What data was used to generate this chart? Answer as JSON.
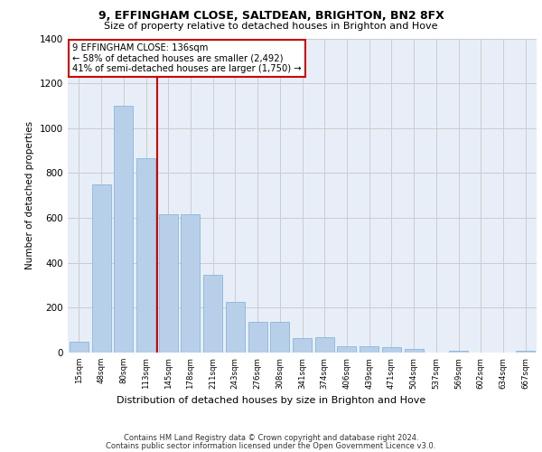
{
  "title1": "9, EFFINGHAM CLOSE, SALTDEAN, BRIGHTON, BN2 8FX",
  "title2": "Size of property relative to detached houses in Brighton and Hove",
  "xlabel": "Distribution of detached houses by size in Brighton and Hove",
  "ylabel": "Number of detached properties",
  "footer1": "Contains HM Land Registry data © Crown copyright and database right 2024.",
  "footer2": "Contains public sector information licensed under the Open Government Licence v3.0.",
  "annotation_line1": "9 EFFINGHAM CLOSE: 136sqm",
  "annotation_line2": "← 58% of detached houses are smaller (2,492)",
  "annotation_line3": "41% of semi-detached houses are larger (1,750) →",
  "bar_color": "#b8cfea",
  "bar_edge_color": "#7aafd4",
  "grid_color": "#cccccc",
  "ref_line_color": "#cc0000",
  "background_color": "#e8eef8",
  "categories": [
    "15sqm",
    "48sqm",
    "80sqm",
    "113sqm",
    "145sqm",
    "178sqm",
    "211sqm",
    "243sqm",
    "276sqm",
    "308sqm",
    "341sqm",
    "374sqm",
    "406sqm",
    "439sqm",
    "471sqm",
    "504sqm",
    "537sqm",
    "569sqm",
    "602sqm",
    "634sqm",
    "667sqm"
  ],
  "values": [
    50,
    750,
    1100,
    865,
    615,
    615,
    345,
    225,
    135,
    135,
    65,
    70,
    30,
    30,
    25,
    15,
    0,
    10,
    0,
    0,
    10
  ],
  "ylim": [
    0,
    1400
  ],
  "yticks": [
    0,
    200,
    400,
    600,
    800,
    1000,
    1200,
    1400
  ],
  "ref_bar_index": 3.5
}
